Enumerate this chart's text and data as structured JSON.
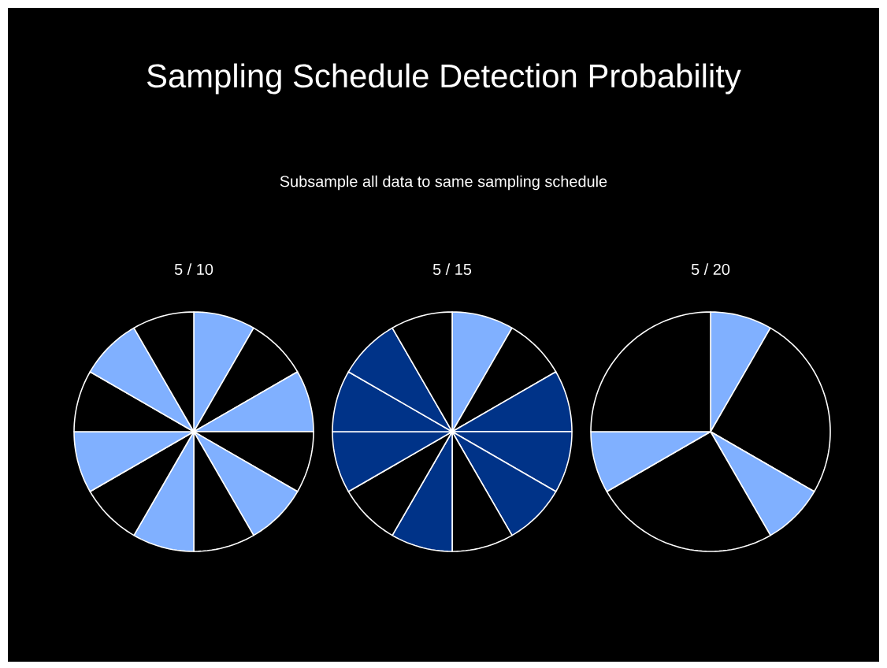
{
  "chart_data": [
    {
      "type": "other",
      "title": "Sampling Schedule Detection Probability",
      "subtitle": "Subsample all data to same sampling schedule"
    },
    {
      "type": "pie",
      "title": "5 / 10",
      "categories": [
        null,
        null,
        null,
        null,
        null,
        null,
        null,
        null,
        null,
        null,
        null,
        null
      ],
      "values": [
        8.33,
        8.33,
        8.33,
        8.33,
        8.33,
        8.33,
        8.33,
        8.33,
        8.33,
        8.33,
        8.33,
        8.33
      ],
      "colors": [
        "#80b0ff",
        "#000000",
        "#80b0ff",
        "#000000",
        "#80b0ff",
        "#000000",
        "#80b0ff",
        "#000000",
        "#80b0ff",
        "#000000",
        "#80b0ff",
        "#000000"
      ]
    },
    {
      "type": "pie",
      "title": "5 / 15",
      "categories": [
        null,
        null,
        null,
        null,
        null,
        null,
        null,
        null,
        null,
        null,
        null,
        null
      ],
      "values": [
        8.33,
        8.33,
        8.33,
        8.33,
        8.33,
        8.33,
        8.33,
        8.33,
        8.33,
        8.33,
        8.33,
        8.33
      ],
      "colors": [
        "#80b0ff",
        "#000000",
        "#003388",
        "#003388",
        "#003388",
        "#000000",
        "#003388",
        "#000000",
        "#003388",
        "#003388",
        "#003388",
        "#000000"
      ]
    },
    {
      "type": "pie",
      "title": "5 / 20",
      "categories": [
        null,
        null,
        null,
        null,
        null,
        null
      ],
      "values": [
        8.33,
        25,
        8.33,
        25,
        8.33,
        25
      ],
      "colors": [
        "#80b0ff",
        "#000000",
        "#80b0ff",
        "#000000",
        "#80b0ff",
        "#000000"
      ]
    }
  ]
}
